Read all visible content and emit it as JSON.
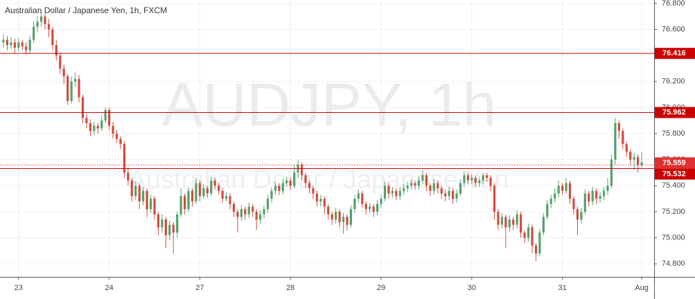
{
  "chart_data": {
    "type": "candlestick",
    "title": "Australian Dollar / Japanese Yen, 1h, FXCM",
    "watermark": "AUDJPY, 1h",
    "watermark_subtitle": "Australian Dollar / Japanese Yen",
    "up_color": "#53a06d",
    "down_color": "#d24b3c",
    "categories": [
      null,
      null,
      null,
      null,
      "23",
      null,
      null,
      null,
      null,
      null,
      null,
      null,
      null,
      null,
      null,
      null,
      null,
      null,
      null,
      null,
      null,
      null,
      null,
      null,
      null,
      null,
      null,
      null,
      "24",
      null,
      null,
      null,
      null,
      null,
      null,
      null,
      null,
      null,
      null,
      null,
      null,
      null,
      null,
      null,
      null,
      null,
      null,
      null,
      null,
      null,
      null,
      null,
      "27",
      null,
      null,
      null,
      null,
      null,
      null,
      null,
      null,
      null,
      null,
      null,
      null,
      null,
      null,
      null,
      null,
      null,
      null,
      null,
      null,
      null,
      null,
      null,
      "28",
      null,
      null,
      null,
      null,
      null,
      null,
      null,
      null,
      null,
      null,
      null,
      null,
      null,
      null,
      null,
      null,
      null,
      null,
      null,
      null,
      null,
      null,
      null,
      "29",
      null,
      null,
      null,
      null,
      null,
      null,
      null,
      null,
      null,
      null,
      null,
      null,
      null,
      null,
      null,
      null,
      null,
      null,
      null,
      null,
      null,
      null,
      null,
      "30",
      null,
      null,
      null,
      null,
      null,
      null,
      null,
      null,
      null,
      null,
      null,
      null,
      null,
      null,
      null,
      null,
      null,
      null,
      null,
      null,
      null,
      null,
      null,
      "31",
      null,
      null,
      null,
      null,
      null,
      null,
      null,
      null,
      null,
      null,
      null,
      null,
      null,
      null,
      null,
      null,
      null,
      null,
      null,
      null,
      "Aug"
    ],
    "open": [
      76.5,
      76.52,
      76.48,
      76.5,
      76.46,
      76.5,
      76.47,
      76.44,
      76.52,
      76.62,
      76.66,
      76.7,
      76.64,
      76.6,
      76.48,
      76.4,
      76.3,
      76.24,
      76.05,
      76.2,
      76.22,
      76.08,
      75.92,
      75.88,
      75.82,
      75.86,
      75.84,
      75.9,
      75.98,
      75.86,
      75.8,
      75.76,
      75.72,
      75.5,
      75.44,
      75.32,
      75.4,
      75.28,
      75.36,
      75.22,
      75.3,
      75.18,
      75.08,
      75.14,
      75.02,
      75.1,
      75.04,
      75.18,
      75.32,
      75.22,
      75.36,
      75.28,
      75.42,
      75.32,
      75.38,
      75.34,
      75.44,
      75.4,
      75.36,
      75.3,
      75.32,
      75.26,
      75.2,
      75.16,
      75.22,
      75.18,
      75.24,
      75.2,
      75.14,
      75.18,
      75.22,
      75.3,
      75.36,
      75.4,
      75.36,
      75.42,
      75.44,
      75.4,
      75.5,
      75.56,
      75.48,
      75.42,
      75.38,
      75.34,
      75.28,
      75.3,
      75.24,
      75.18,
      75.14,
      75.2,
      75.12,
      75.16,
      75.1,
      75.22,
      75.3,
      75.34,
      75.26,
      75.22,
      75.24,
      75.2,
      75.26,
      75.3,
      75.4,
      75.34,
      75.36,
      75.32,
      75.36,
      75.38,
      75.4,
      75.42,
      75.4,
      75.44,
      75.48,
      75.4,
      75.36,
      75.42,
      75.38,
      75.34,
      75.32,
      75.36,
      75.3,
      75.34,
      75.42,
      75.48,
      75.44,
      75.46,
      75.42,
      75.44,
      75.48,
      75.46,
      75.4,
      75.2,
      75.1,
      75.16,
      75.08,
      75.14,
      75.1,
      75.18,
      75.04,
      75.0,
      75.08,
      74.94,
      74.88,
      75.04,
      75.16,
      75.26,
      75.3,
      75.34,
      75.4,
      75.36,
      75.42,
      75.3,
      75.22,
      75.14,
      75.2,
      75.34,
      75.28,
      75.36,
      75.3,
      75.32,
      75.36,
      75.4,
      75.6,
      75.88,
      75.82,
      75.72,
      75.66,
      75.6,
      75.62,
      75.56
    ],
    "high": [
      76.56,
      76.55,
      76.54,
      76.53,
      76.53,
      76.52,
      76.5,
      76.55,
      76.66,
      76.7,
      76.74,
      76.72,
      76.68,
      76.62,
      76.52,
      76.42,
      76.33,
      76.26,
      76.24,
      76.27,
      76.25,
      76.1,
      75.95,
      75.91,
      75.89,
      75.88,
      75.94,
      76.0,
      76.0,
      75.89,
      75.83,
      75.78,
      75.74,
      75.54,
      75.46,
      75.43,
      75.42,
      75.39,
      75.38,
      75.33,
      75.32,
      75.2,
      75.18,
      75.16,
      75.13,
      75.12,
      75.2,
      75.38,
      75.34,
      75.39,
      75.38,
      75.46,
      75.44,
      75.41,
      75.4,
      75.47,
      75.46,
      75.42,
      75.38,
      75.35,
      75.34,
      75.28,
      75.22,
      75.25,
      75.24,
      75.27,
      75.26,
      75.22,
      75.21,
      75.25,
      75.33,
      75.39,
      75.43,
      75.42,
      75.45,
      75.47,
      75.46,
      75.56,
      75.6,
      75.58,
      75.5,
      75.44,
      75.4,
      75.36,
      75.33,
      75.32,
      75.26,
      75.2,
      75.23,
      75.22,
      75.19,
      75.18,
      75.25,
      75.33,
      75.37,
      75.36,
      75.28,
      75.27,
      75.26,
      75.29,
      75.33,
      75.43,
      75.42,
      75.39,
      75.38,
      75.39,
      75.41,
      75.43,
      75.45,
      75.44,
      75.47,
      75.52,
      75.5,
      75.42,
      75.45,
      75.44,
      75.4,
      75.37,
      75.39,
      75.38,
      75.37,
      75.45,
      75.51,
      75.5,
      75.49,
      75.48,
      75.47,
      75.5,
      75.5,
      75.48,
      75.42,
      75.22,
      75.19,
      75.18,
      75.17,
      75.16,
      75.21,
      75.2,
      75.06,
      75.11,
      75.1,
      74.96,
      75.07,
      75.19,
      75.29,
      75.33,
      75.38,
      75.44,
      75.42,
      75.46,
      75.44,
      75.32,
      75.24,
      75.23,
      75.37,
      75.36,
      75.39,
      75.38,
      75.35,
      75.39,
      75.46,
      75.64,
      75.92,
      75.9,
      75.84,
      75.74,
      75.68,
      75.65,
      75.64,
      75.66
    ],
    "low": [
      76.46,
      76.44,
      76.45,
      76.42,
      76.43,
      76.44,
      76.41,
      76.42,
      76.5,
      76.58,
      76.62,
      76.6,
      76.54,
      76.44,
      76.36,
      76.26,
      76.18,
      76.02,
      76.03,
      76.16,
      76.04,
      75.88,
      75.84,
      75.78,
      75.79,
      75.8,
      75.82,
      75.88,
      75.83,
      75.76,
      75.73,
      75.68,
      75.46,
      75.4,
      75.28,
      75.29,
      75.22,
      75.25,
      75.16,
      75.19,
      75.14,
      75.02,
      75.04,
      74.92,
      74.98,
      74.88,
      75.0,
      75.16,
      75.18,
      75.2,
      75.24,
      75.26,
      75.28,
      75.3,
      75.31,
      75.32,
      75.37,
      75.33,
      75.27,
      75.28,
      75.22,
      75.16,
      75.04,
      75.13,
      75.14,
      75.15,
      75.16,
      75.06,
      75.11,
      75.15,
      75.19,
      75.27,
      75.33,
      75.33,
      75.33,
      75.39,
      75.37,
      75.38,
      75.46,
      75.44,
      75.38,
      75.34,
      75.3,
      75.24,
      75.24,
      75.18,
      75.14,
      75.1,
      75.11,
      75.08,
      75.03,
      75.06,
      75.08,
      75.19,
      75.27,
      75.23,
      75.18,
      75.19,
      75.16,
      75.17,
      75.23,
      75.28,
      75.3,
      75.31,
      75.29,
      75.29,
      75.33,
      75.35,
      75.37,
      75.37,
      75.37,
      75.41,
      75.36,
      75.32,
      75.33,
      75.34,
      75.3,
      75.28,
      75.29,
      75.26,
      75.27,
      75.32,
      75.39,
      75.41,
      75.41,
      75.39,
      75.39,
      75.41,
      75.43,
      75.36,
      75.14,
      75.06,
      75.07,
      74.92,
      75.05,
      75.06,
      75.07,
      75.0,
      74.96,
      74.97,
      74.88,
      74.82,
      74.86,
      75.02,
      75.14,
      75.23,
      75.27,
      75.31,
      75.33,
      75.34,
      75.26,
      75.18,
      75.02,
      75.11,
      75.18,
      75.24,
      75.25,
      75.26,
      75.27,
      75.29,
      75.33,
      75.38,
      75.56,
      75.76,
      75.68,
      75.62,
      75.56,
      75.52,
      75.5,
      75.54
    ],
    "close": [
      76.52,
      76.48,
      76.5,
      76.46,
      76.5,
      76.47,
      76.44,
      76.52,
      76.62,
      76.66,
      76.7,
      76.64,
      76.6,
      76.48,
      76.4,
      76.3,
      76.24,
      76.05,
      76.2,
      76.22,
      76.08,
      75.92,
      75.88,
      75.82,
      75.86,
      75.84,
      75.9,
      75.98,
      75.86,
      75.8,
      75.76,
      75.72,
      75.5,
      75.44,
      75.32,
      75.4,
      75.28,
      75.36,
      75.22,
      75.3,
      75.18,
      75.08,
      75.14,
      75.02,
      75.1,
      75.04,
      75.18,
      75.32,
      75.22,
      75.36,
      75.28,
      75.42,
      75.32,
      75.38,
      75.34,
      75.44,
      75.4,
      75.36,
      75.3,
      75.32,
      75.26,
      75.2,
      75.16,
      75.22,
      75.18,
      75.24,
      75.2,
      75.14,
      75.18,
      75.22,
      75.3,
      75.36,
      75.4,
      75.36,
      75.42,
      75.44,
      75.4,
      75.5,
      75.56,
      75.48,
      75.42,
      75.38,
      75.34,
      75.28,
      75.3,
      75.24,
      75.18,
      75.14,
      75.2,
      75.12,
      75.16,
      75.1,
      75.22,
      75.3,
      75.34,
      75.26,
      75.22,
      75.24,
      75.2,
      75.26,
      75.3,
      75.4,
      75.34,
      75.36,
      75.32,
      75.36,
      75.38,
      75.4,
      75.42,
      75.4,
      75.44,
      75.48,
      75.4,
      75.36,
      75.42,
      75.38,
      75.34,
      75.32,
      75.36,
      75.3,
      75.34,
      75.42,
      75.48,
      75.44,
      75.46,
      75.42,
      75.44,
      75.48,
      75.46,
      75.4,
      75.2,
      75.1,
      75.16,
      75.08,
      75.14,
      75.1,
      75.18,
      75.04,
      75.0,
      75.08,
      74.94,
      74.88,
      75.04,
      75.16,
      75.26,
      75.3,
      75.34,
      75.4,
      75.36,
      75.42,
      75.3,
      75.22,
      75.14,
      75.2,
      75.34,
      75.28,
      75.36,
      75.3,
      75.32,
      75.36,
      75.4,
      75.6,
      75.88,
      75.82,
      75.72,
      75.66,
      75.6,
      75.62,
      75.56,
      75.58
    ],
    "ylim": [
      74.7,
      76.826
    ],
    "yticks": [
      {
        "value": 74.8,
        "label": "74.800"
      },
      {
        "value": 75.0,
        "label": "75.000"
      },
      {
        "value": 75.2,
        "label": "75.200"
      },
      {
        "value": 75.4,
        "label": "75.400"
      },
      {
        "value": 75.6,
        "label": "75.600"
      },
      {
        "value": 75.8,
        "label": "75.800"
      },
      {
        "value": 76.0,
        "label": "76.000"
      },
      {
        "value": 76.2,
        "label": "76.200"
      },
      {
        "value": 76.4,
        "label": "76.400"
      },
      {
        "value": 76.6,
        "label": "76.600"
      },
      {
        "value": 76.8,
        "label": "76.800"
      }
    ],
    "levels": [
      {
        "value": 76.416,
        "color": "#cc0000",
        "style": "solid"
      },
      {
        "value": 75.962,
        "color": "#cc0000",
        "style": "solid"
      },
      {
        "value": 75.532,
        "color": "#cc0000",
        "style": "solid"
      },
      {
        "value": 75.559,
        "color": "#e03030",
        "style": "dotted"
      }
    ]
  }
}
